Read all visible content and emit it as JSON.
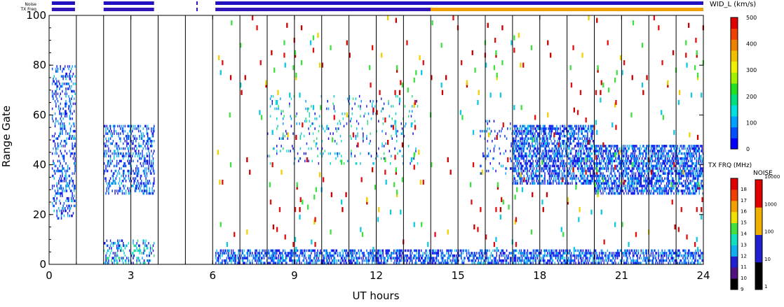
{
  "chart_data": {
    "type": "heatmap",
    "xlabel": "UT hours",
    "ylabel": "Range Gate",
    "xlim": [
      0,
      24
    ],
    "ylim": [
      0,
      100
    ],
    "xticks": [
      "0",
      "3",
      "6",
      "9",
      "12",
      "15",
      "18",
      "21",
      "24"
    ],
    "yticks": [
      "0",
      "20",
      "40",
      "60",
      "80",
      "100"
    ],
    "grid": "vertical lines every hour",
    "status_bars": {
      "noise_label": "Noise",
      "txfreq_label": "TX Freq",
      "noise_bar_color": "#2010c0",
      "txfreq_segments": [
        {
          "start": 0.1,
          "end": 0.95,
          "color": "#3018b8"
        },
        {
          "start": 2.0,
          "end": 3.85,
          "color": "#3018b8"
        },
        {
          "start": 5.4,
          "end": 5.45,
          "color": "#3018b8"
        },
        {
          "start": 6.1,
          "end": 14.0,
          "color": "#3018b8"
        },
        {
          "start": 14.0,
          "end": 24.0,
          "color": "#f0a000"
        }
      ],
      "noise_segments": [
        {
          "start": 0.1,
          "end": 0.95
        },
        {
          "start": 2.0,
          "end": 3.85
        },
        {
          "start": 5.4,
          "end": 5.45
        },
        {
          "start": 6.1,
          "end": 24.0
        }
      ]
    },
    "main_colorbar": {
      "label": "WID_L (km/s)",
      "ticks": [
        "0",
        "100",
        "200",
        "300",
        "400",
        "500"
      ],
      "range": [
        0,
        500
      ]
    },
    "txfreq_colorbar": {
      "label": "TX FRQ (MHz)",
      "ticks": [
        "9",
        "10",
        "11",
        "12",
        "13",
        "14",
        "15",
        "16",
        "17",
        "18"
      ]
    },
    "noise_colorbar": {
      "label": "NOISE",
      "ticks": [
        "1",
        "10",
        "100",
        "1000",
        "10000"
      ]
    },
    "scatter_regions": [
      {
        "t0": 0.1,
        "t1": 0.95,
        "g0": 18,
        "g1": 80,
        "density": 0.28,
        "mix": "blue"
      },
      {
        "t0": 2.0,
        "t1": 3.85,
        "g0": 28,
        "g1": 56,
        "density": 0.33,
        "mix": "blue"
      },
      {
        "t0": 2.0,
        "t1": 3.85,
        "g0": 0,
        "g1": 10,
        "density": 0.3,
        "mix": "cyan"
      },
      {
        "t0": 6.1,
        "t1": 24.0,
        "g0": 0,
        "g1": 6,
        "density": 0.55,
        "mix": "blue"
      },
      {
        "t0": 8.0,
        "t1": 13.5,
        "g0": 40,
        "g1": 68,
        "density": 0.06,
        "mix": "cyan"
      },
      {
        "t0": 15.8,
        "t1": 17.0,
        "g0": 36,
        "g1": 58,
        "density": 0.12,
        "mix": "blue"
      },
      {
        "t0": 17.0,
        "t1": 20.0,
        "g0": 32,
        "g1": 56,
        "density": 0.55,
        "mix": "blue"
      },
      {
        "t0": 20.0,
        "t1": 24.0,
        "g0": 28,
        "g1": 48,
        "density": 0.58,
        "mix": "blue"
      },
      {
        "t0": 6.1,
        "t1": 24.0,
        "g0": 6,
        "g1": 100,
        "density": 0.008,
        "mix": "red"
      }
    ]
  }
}
